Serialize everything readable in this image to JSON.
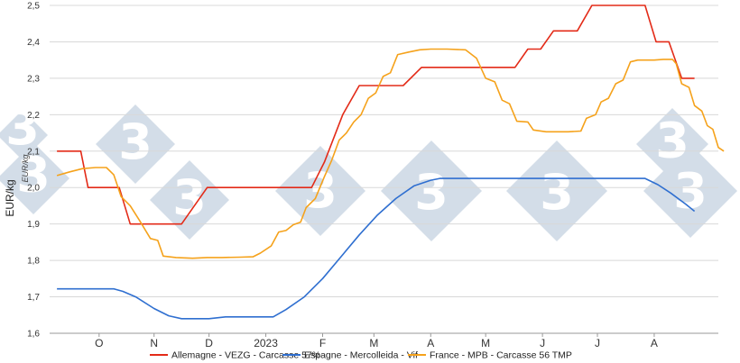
{
  "chart_data": {
    "type": "line",
    "ylabel": "EUR/kg",
    "ylabel_secondary": "EUR/kg",
    "ylim": [
      1.6,
      2.5
    ],
    "yticks": [
      "1,6",
      "1,7",
      "1,8",
      "1,9",
      "2,0",
      "2,1",
      "2,2",
      "2,3",
      "2,4",
      "2,5"
    ],
    "x_range": [
      "2022-09-05",
      "2023-09-05"
    ],
    "x_labels": [
      {
        "date": "2022-10-02",
        "label": "O"
      },
      {
        "date": "2022-11-01",
        "label": "N"
      },
      {
        "date": "2022-12-01",
        "label": "D"
      },
      {
        "date": "2023-01-01",
        "label": "2023"
      },
      {
        "date": "2023-02-01",
        "label": "F"
      },
      {
        "date": "2023-03-01",
        "label": "M"
      },
      {
        "date": "2023-04-01",
        "label": "A"
      },
      {
        "date": "2023-05-01",
        "label": "M"
      },
      {
        "date": "2023-06-01",
        "label": "J"
      },
      {
        "date": "2023-07-01",
        "label": "J"
      },
      {
        "date": "2023-08-01",
        "label": "A"
      }
    ],
    "grid": "horizontal",
    "legend_position": "bottom",
    "series": [
      {
        "name": "Allemagne - VEZG - Carcasse 57%",
        "color": "#e32b18",
        "points": [
          [
            "2022-09-09",
            2.1
          ],
          [
            "2022-09-22",
            2.1
          ],
          [
            "2022-09-26",
            2.0
          ],
          [
            "2022-10-13",
            2.0
          ],
          [
            "2022-10-19",
            1.9
          ],
          [
            "2022-11-16",
            1.9
          ],
          [
            "2022-11-30",
            2.0
          ],
          [
            "2023-01-26",
            2.0
          ],
          [
            "2023-02-02",
            2.07
          ],
          [
            "2023-02-12",
            2.2
          ],
          [
            "2023-02-21",
            2.28
          ],
          [
            "2023-03-17",
            2.28
          ],
          [
            "2023-03-27",
            2.33
          ],
          [
            "2023-05-17",
            2.33
          ],
          [
            "2023-05-24",
            2.38
          ],
          [
            "2023-05-31",
            2.38
          ],
          [
            "2023-06-07",
            2.43
          ],
          [
            "2023-06-20",
            2.43
          ],
          [
            "2023-06-28",
            2.5
          ],
          [
            "2023-07-27",
            2.5
          ],
          [
            "2023-08-02",
            2.4
          ],
          [
            "2023-08-09",
            2.4
          ],
          [
            "2023-08-16",
            2.3
          ],
          [
            "2023-08-23",
            2.3
          ]
        ]
      },
      {
        "name": "Espagne - Mercolleida - Vif",
        "color": "#2f6fd0",
        "points": [
          [
            "2022-09-09",
            1.722
          ],
          [
            "2022-10-10",
            1.722
          ],
          [
            "2022-10-15",
            1.715
          ],
          [
            "2022-10-22",
            1.7
          ],
          [
            "2022-11-01",
            1.668
          ],
          [
            "2022-11-09",
            1.648
          ],
          [
            "2022-11-16",
            1.64
          ],
          [
            "2022-12-01",
            1.64
          ],
          [
            "2022-12-10",
            1.645
          ],
          [
            "2023-01-05",
            1.645
          ],
          [
            "2023-01-12",
            1.665
          ],
          [
            "2023-01-22",
            1.7
          ],
          [
            "2023-02-01",
            1.75
          ],
          [
            "2023-02-11",
            1.81
          ],
          [
            "2023-02-21",
            1.87
          ],
          [
            "2023-03-03",
            1.925
          ],
          [
            "2023-03-13",
            1.97
          ],
          [
            "2023-03-23",
            2.005
          ],
          [
            "2023-04-01",
            2.02
          ],
          [
            "2023-04-06",
            2.025
          ],
          [
            "2023-07-27",
            2.025
          ],
          [
            "2023-08-03",
            2.008
          ],
          [
            "2023-08-10",
            1.985
          ],
          [
            "2023-08-18",
            1.955
          ],
          [
            "2023-08-23",
            1.935
          ]
        ]
      },
      {
        "name": "France - MPB - Carcasse 56 TMP",
        "color": "#f5a21b",
        "points": [
          [
            "2022-09-09",
            2.033
          ],
          [
            "2022-09-16",
            2.043
          ],
          [
            "2022-09-23",
            2.052
          ],
          [
            "2022-09-30",
            2.055
          ],
          [
            "2022-10-06",
            2.055
          ],
          [
            "2022-10-10",
            2.035
          ],
          [
            "2022-10-14",
            1.975
          ],
          [
            "2022-10-19",
            1.95
          ],
          [
            "2022-10-24",
            1.91
          ],
          [
            "2022-10-30",
            1.86
          ],
          [
            "2022-11-03",
            1.855
          ],
          [
            "2022-11-06",
            1.812
          ],
          [
            "2022-11-13",
            1.808
          ],
          [
            "2022-11-22",
            1.806
          ],
          [
            "2022-11-30",
            1.808
          ],
          [
            "2022-12-08",
            1.808
          ],
          [
            "2022-12-18",
            1.809
          ],
          [
            "2022-12-25",
            1.81
          ],
          [
            "2022-12-29",
            1.82
          ],
          [
            "2023-01-04",
            1.84
          ],
          [
            "2023-01-08",
            1.878
          ],
          [
            "2023-01-12",
            1.882
          ],
          [
            "2023-01-16",
            1.898
          ],
          [
            "2023-01-20",
            1.905
          ],
          [
            "2023-01-23",
            1.945
          ],
          [
            "2023-01-28",
            1.97
          ],
          [
            "2023-02-02",
            2.03
          ],
          [
            "2023-02-06",
            2.075
          ],
          [
            "2023-02-10",
            2.13
          ],
          [
            "2023-02-14",
            2.15
          ],
          [
            "2023-02-18",
            2.18
          ],
          [
            "2023-02-22",
            2.2
          ],
          [
            "2023-02-26",
            2.245
          ],
          [
            "2023-03-02",
            2.26
          ],
          [
            "2023-03-06",
            2.305
          ],
          [
            "2023-03-10",
            2.315
          ],
          [
            "2023-03-14",
            2.365
          ],
          [
            "2023-03-20",
            2.372
          ],
          [
            "2023-03-26",
            2.378
          ],
          [
            "2023-04-01",
            2.38
          ],
          [
            "2023-04-10",
            2.38
          ],
          [
            "2023-04-20",
            2.378
          ],
          [
            "2023-04-26",
            2.355
          ],
          [
            "2023-05-01",
            2.3
          ],
          [
            "2023-05-06",
            2.29
          ],
          [
            "2023-05-10",
            2.24
          ],
          [
            "2023-05-14",
            2.23
          ],
          [
            "2023-05-18",
            2.182
          ],
          [
            "2023-05-24",
            2.18
          ],
          [
            "2023-05-27",
            2.158
          ],
          [
            "2023-06-03",
            2.153
          ],
          [
            "2023-06-15",
            2.153
          ],
          [
            "2023-06-22",
            2.155
          ],
          [
            "2023-06-25",
            2.19
          ],
          [
            "2023-06-30",
            2.2
          ],
          [
            "2023-07-03",
            2.235
          ],
          [
            "2023-07-07",
            2.245
          ],
          [
            "2023-07-11",
            2.285
          ],
          [
            "2023-07-15",
            2.295
          ],
          [
            "2023-07-19",
            2.345
          ],
          [
            "2023-07-23",
            2.35
          ],
          [
            "2023-08-01",
            2.35
          ],
          [
            "2023-08-06",
            2.352
          ],
          [
            "2023-08-11",
            2.352
          ],
          [
            "2023-08-13",
            2.34
          ],
          [
            "2023-08-16",
            2.285
          ],
          [
            "2023-08-20",
            2.275
          ],
          [
            "2023-08-23",
            2.225
          ],
          [
            "2023-08-27",
            2.21
          ],
          [
            "2023-08-30",
            2.17
          ],
          [
            "2023-09-02",
            2.16
          ],
          [
            "2023-09-05",
            2.11
          ],
          [
            "2023-09-08",
            2.1
          ]
        ]
      }
    ]
  },
  "watermark": {
    "text": "3",
    "color": "#d3dde8"
  }
}
